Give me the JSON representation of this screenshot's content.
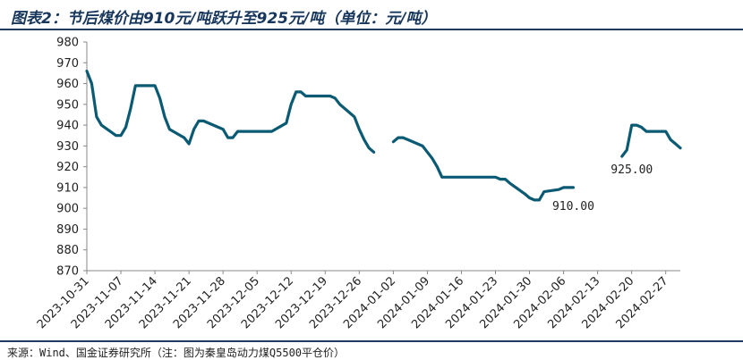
{
  "title": "图表2：节后煤价由910元/吨跃升至925元/吨（单位：元/吨）",
  "source": "来源：Wind、国金证券研究所（注：图为秦皇岛动力煤Q5500平仓价）",
  "colors": {
    "line": "#0b5a73",
    "header_rule": "#1f3a5f",
    "text": "#222222"
  },
  "chart_data": {
    "type": "line",
    "ylim": [
      870,
      980
    ],
    "yticks": [
      870,
      880,
      890,
      900,
      910,
      920,
      930,
      940,
      950,
      960,
      970,
      980
    ],
    "grid": false,
    "x_range": [
      "2023-10-31",
      "2024-03-01"
    ],
    "xticks": [
      "2023-10-31",
      "2023-11-07",
      "2023-11-14",
      "2023-11-21",
      "2023-11-28",
      "2023-12-05",
      "2023-12-12",
      "2023-12-19",
      "2023-12-26",
      "2024-01-02",
      "2024-01-09",
      "2024-01-16",
      "2024-01-23",
      "2024-01-30",
      "2024-02-06",
      "2024-02-13",
      "2024-02-20",
      "2024-02-27"
    ],
    "series": [
      {
        "values": [
          [
            "2023-10-31",
            966
          ],
          [
            "2023-11-01",
            960
          ],
          [
            "2023-11-02",
            944
          ],
          [
            "2023-11-03",
            940
          ],
          [
            "2023-11-06",
            935
          ],
          [
            "2023-11-07",
            935
          ],
          [
            "2023-11-08",
            939
          ],
          [
            "2023-11-09",
            948
          ],
          [
            "2023-11-10",
            959
          ],
          [
            "2023-11-13",
            959
          ],
          [
            "2023-11-14",
            959
          ],
          [
            "2023-11-15",
            953
          ],
          [
            "2023-11-16",
            944
          ],
          [
            "2023-11-17",
            938
          ],
          [
            "2023-11-20",
            934
          ],
          [
            "2023-11-21",
            931
          ],
          [
            "2023-11-22",
            938
          ],
          [
            "2023-11-23",
            942
          ],
          [
            "2023-11-24",
            942
          ],
          [
            "2023-11-27",
            939
          ],
          [
            "2023-11-28",
            938
          ],
          [
            "2023-11-29",
            934
          ],
          [
            "2023-11-30",
            934
          ],
          [
            "2023-12-01",
            937
          ],
          [
            "2023-12-04",
            937
          ],
          [
            "2023-12-05",
            937
          ],
          [
            "2023-12-06",
            937
          ],
          [
            "2023-12-07",
            937
          ],
          [
            "2023-12-08",
            937
          ],
          [
            "2023-12-11",
            941
          ],
          [
            "2023-12-12",
            950
          ],
          [
            "2023-12-13",
            956
          ],
          [
            "2023-12-14",
            956
          ],
          [
            "2023-12-15",
            954
          ],
          [
            "2023-12-18",
            954
          ],
          [
            "2023-12-19",
            954
          ],
          [
            "2023-12-20",
            954
          ],
          [
            "2023-12-21",
            953
          ],
          [
            "2023-12-22",
            950
          ],
          [
            "2023-12-25",
            944
          ],
          [
            "2023-12-26",
            938
          ],
          [
            "2023-12-27",
            933
          ],
          [
            "2023-12-28",
            929
          ],
          [
            "2023-12-29",
            927
          ]
        ]
      },
      {
        "values": [
          [
            "2024-01-02",
            932
          ],
          [
            "2024-01-03",
            934
          ],
          [
            "2024-01-04",
            934
          ],
          [
            "2024-01-05",
            933
          ],
          [
            "2024-01-08",
            930
          ],
          [
            "2024-01-09",
            927
          ],
          [
            "2024-01-10",
            924
          ],
          [
            "2024-01-11",
            920
          ],
          [
            "2024-01-12",
            915
          ],
          [
            "2024-01-15",
            915
          ],
          [
            "2024-01-16",
            915
          ],
          [
            "2024-01-17",
            915
          ],
          [
            "2024-01-18",
            915
          ],
          [
            "2024-01-19",
            915
          ],
          [
            "2024-01-22",
            915
          ],
          [
            "2024-01-23",
            915
          ],
          [
            "2024-01-24",
            914
          ],
          [
            "2024-01-25",
            914
          ],
          [
            "2024-01-26",
            912
          ],
          [
            "2024-01-29",
            907
          ],
          [
            "2024-01-30",
            905
          ],
          [
            "2024-01-31",
            904
          ],
          [
            "2024-02-01",
            904
          ],
          [
            "2024-02-02",
            908
          ],
          [
            "2024-02-05",
            909
          ],
          [
            "2024-02-06",
            910
          ],
          [
            "2024-02-07",
            910
          ],
          [
            "2024-02-08",
            910
          ]
        ]
      },
      {
        "values": [
          [
            "2024-02-18",
            925
          ],
          [
            "2024-02-19",
            928
          ],
          [
            "2024-02-20",
            940
          ],
          [
            "2024-02-21",
            940
          ],
          [
            "2024-02-22",
            939
          ],
          [
            "2024-02-23",
            937
          ],
          [
            "2024-02-26",
            937
          ],
          [
            "2024-02-27",
            937
          ],
          [
            "2024-02-28",
            933
          ],
          [
            "2024-02-29",
            931
          ],
          [
            "2024-03-01",
            929
          ]
        ]
      }
    ],
    "annotations": [
      {
        "text": "910.00",
        "date": "2024-02-08",
        "value": 910
      },
      {
        "text": "925.00",
        "date": "2024-02-18",
        "value": 925
      }
    ]
  }
}
